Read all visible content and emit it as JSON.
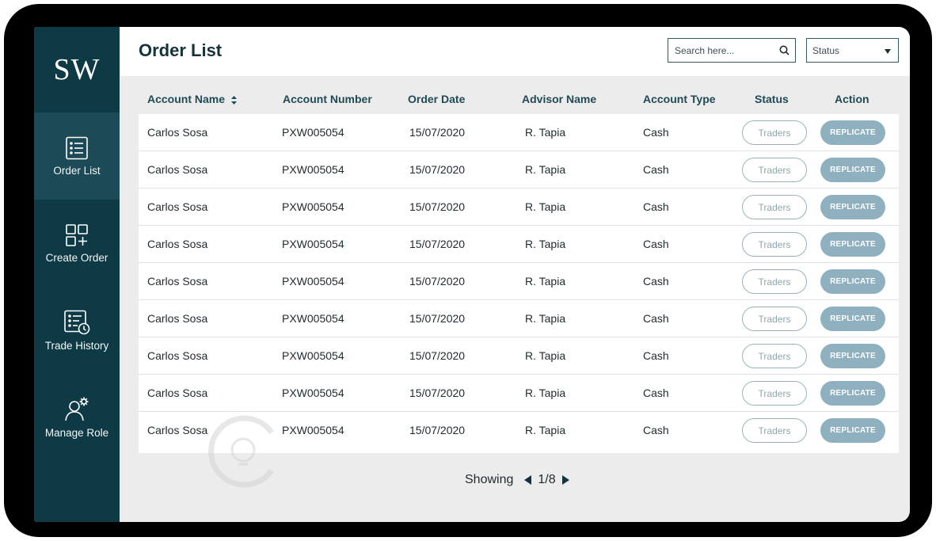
{
  "sidebar": {
    "logo": "SW",
    "items": [
      {
        "label": "Order List",
        "icon": "list-icon",
        "active": true
      },
      {
        "label": "Create Order",
        "icon": "grid-plus-icon"
      },
      {
        "label": "Trade History",
        "icon": "history-icon"
      },
      {
        "label": "Manage Role",
        "icon": "user-gear-icon"
      }
    ]
  },
  "header": {
    "title": "Order List",
    "search_placeholder": "Search here...",
    "status_select": "Status"
  },
  "table": {
    "columns": [
      "Account Name",
      "Account Number",
      "Order Date",
      "Advisor Name",
      "Account Type",
      "Status",
      "Action"
    ],
    "rows": [
      {
        "account_name": "Carlos Sosa",
        "account_number": "PXW005054",
        "order_date": "15/07/2020",
        "advisor": "R. Tapia",
        "type": "Cash",
        "status": "Traders",
        "action": "REPLICATE"
      },
      {
        "account_name": "Carlos Sosa",
        "account_number": "PXW005054",
        "order_date": "15/07/2020",
        "advisor": "R. Tapia",
        "type": "Cash",
        "status": "Traders",
        "action": "REPLICATE"
      },
      {
        "account_name": "Carlos Sosa",
        "account_number": "PXW005054",
        "order_date": "15/07/2020",
        "advisor": "R. Tapia",
        "type": "Cash",
        "status": "Traders",
        "action": "REPLICATE"
      },
      {
        "account_name": "Carlos Sosa",
        "account_number": "PXW005054",
        "order_date": "15/07/2020",
        "advisor": "R. Tapia",
        "type": "Cash",
        "status": "Traders",
        "action": "REPLICATE"
      },
      {
        "account_name": "Carlos Sosa",
        "account_number": "PXW005054",
        "order_date": "15/07/2020",
        "advisor": "R. Tapia",
        "type": "Cash",
        "status": "Traders",
        "action": "REPLICATE"
      },
      {
        "account_name": "Carlos Sosa",
        "account_number": "PXW005054",
        "order_date": "15/07/2020",
        "advisor": "R. Tapia",
        "type": "Cash",
        "status": "Traders",
        "action": "REPLICATE"
      },
      {
        "account_name": "Carlos Sosa",
        "account_number": "PXW005054",
        "order_date": "15/07/2020",
        "advisor": "R. Tapia",
        "type": "Cash",
        "status": "Traders",
        "action": "REPLICATE"
      },
      {
        "account_name": "Carlos Sosa",
        "account_number": "PXW005054",
        "order_date": "15/07/2020",
        "advisor": "R. Tapia",
        "type": "Cash",
        "status": "Traders",
        "action": "REPLICATE"
      },
      {
        "account_name": "Carlos Sosa",
        "account_number": "PXW005054",
        "order_date": "15/07/2020",
        "advisor": "R. Tapia",
        "type": "Cash",
        "status": "Traders",
        "action": "REPLICATE"
      }
    ]
  },
  "pagination": {
    "label": "Showing",
    "page": "1/8"
  },
  "colors": {
    "sidebar": "#0e3a46",
    "sidebar_active": "#1c4a56",
    "replicate": "#8fb0be",
    "traders_border": "#9ab3bb",
    "title": "#16323a"
  }
}
